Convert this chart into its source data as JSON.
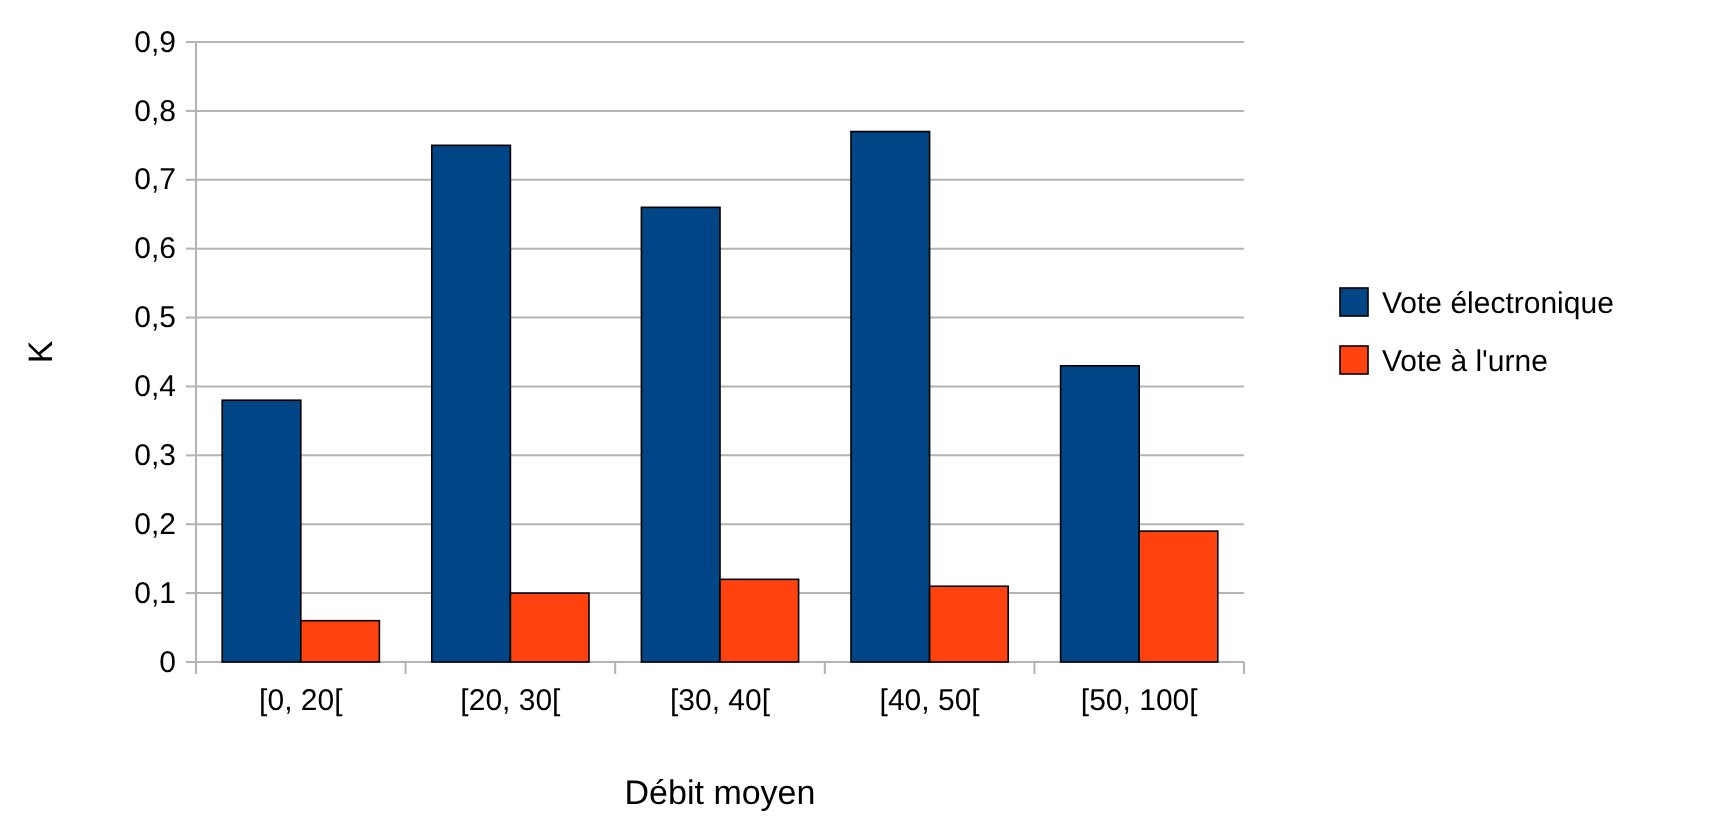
{
  "chart_data": {
    "type": "bar",
    "xlabel": "Débit moyen",
    "ylabel": "K",
    "categories": [
      "[0, 20[",
      "[20, 30[",
      "[30, 40[",
      "[40, 50[",
      "[50, 100["
    ],
    "series": [
      {
        "name": "Vote électronique",
        "color": "#004586",
        "values": [
          0.38,
          0.75,
          0.66,
          0.77,
          0.43
        ]
      },
      {
        "name": "Vote à l'urne",
        "color": "#ff420e",
        "values": [
          0.06,
          0.1,
          0.12,
          0.11,
          0.19
        ]
      }
    ],
    "ylim": [
      0,
      0.9
    ],
    "yticks": [
      {
        "value": 0,
        "label": "0"
      },
      {
        "value": 0.1,
        "label": "0,1"
      },
      {
        "value": 0.2,
        "label": "0,2"
      },
      {
        "value": 0.3,
        "label": "0,3"
      },
      {
        "value": 0.4,
        "label": "0,4"
      },
      {
        "value": 0.5,
        "label": "0,5"
      },
      {
        "value": 0.6,
        "label": "0,6"
      },
      {
        "value": 0.7,
        "label": "0,7"
      },
      {
        "value": 0.8,
        "label": "0,8"
      },
      {
        "value": 0.9,
        "label": "0,9"
      }
    ],
    "grid": "y",
    "legend": "right"
  }
}
